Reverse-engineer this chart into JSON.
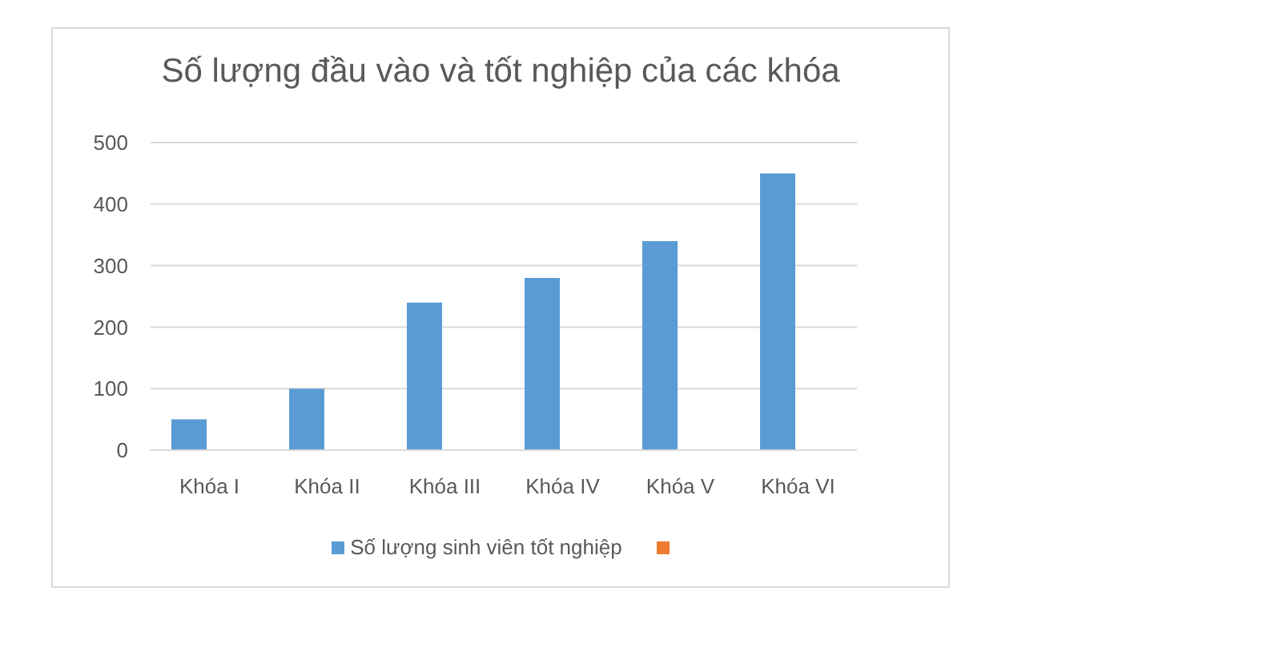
{
  "chart_data": {
    "type": "bar",
    "title": "Số lượng đầu vào và tốt nghiệp của các khóa",
    "categories": [
      "Khóa I",
      "Khóa II",
      "Khóa III",
      "Khóa IV",
      "Khóa V",
      "Khóa VI"
    ],
    "series": [
      {
        "name": "Số lượng sinh viên tốt nghiệp",
        "color": "#5b9bd5",
        "values": [
          50,
          100,
          240,
          280,
          340,
          450
        ]
      },
      {
        "color": "#ed7d31",
        "values": [
          null,
          null,
          null,
          null,
          null,
          null
        ]
      }
    ],
    "ylim": [
      0,
      500
    ],
    "yticks": [
      0,
      100,
      200,
      300,
      400,
      500
    ],
    "grid": "y",
    "legend": "bottom"
  }
}
